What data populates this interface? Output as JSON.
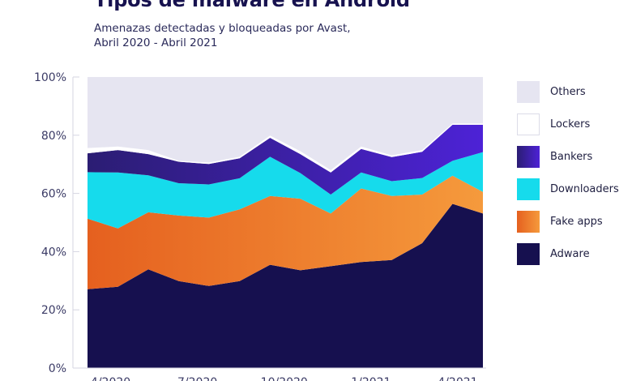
{
  "chart_data": {
    "type": "area",
    "stacked": true,
    "title": "Tipos de malware en Android",
    "subtitle_lines": [
      "Amenazas detectadas y bloqueadas por Avast,",
      "Abril 2020 - Abril 2021"
    ],
    "xlabel": "",
    "ylabel": "",
    "x_unit": "months since 4/2020",
    "x": [
      -0.8,
      0.25,
      1.3,
      2.35,
      3.4,
      4.46,
      5.51,
      6.56,
      7.61,
      8.66,
      9.72,
      10.77,
      11.82,
      12.87
    ],
    "xlim": [
      -0.8,
      12.87
    ],
    "x_ticks": [
      {
        "value": 0,
        "label": "4/2020"
      },
      {
        "value": 3,
        "label": "7/2020"
      },
      {
        "value": 6,
        "label": "10/2020"
      },
      {
        "value": 9,
        "label": "1/2021"
      },
      {
        "value": 12,
        "label": "4/2021"
      }
    ],
    "ylim": [
      0,
      100
    ],
    "y_ticks": [
      {
        "value": 0,
        "label": "0%"
      },
      {
        "value": 20,
        "label": "20%"
      },
      {
        "value": 40,
        "label": "40%"
      },
      {
        "value": 60,
        "label": "60%"
      },
      {
        "value": 80,
        "label": "80%"
      },
      {
        "value": 100,
        "label": "100%"
      }
    ],
    "grid": false,
    "legend_position": "right",
    "series": [
      {
        "name": "Adware",
        "color": "#16104f",
        "color2": "#16104f",
        "values": [
          27.1,
          27.9,
          33.9,
          29.9,
          28.2,
          29.9,
          35.5,
          33.6,
          35.0,
          36.4,
          37.1,
          42.9,
          56.4,
          53.1
        ]
      },
      {
        "name": "Fake apps",
        "color": "#e5601f",
        "color2": "#f59a3c",
        "values": [
          24.2,
          20.1,
          19.6,
          22.5,
          23.5,
          24.6,
          23.6,
          24.6,
          18.1,
          25.3,
          22.0,
          16.7,
          9.7,
          7.4
        ]
      },
      {
        "name": "Downloaders",
        "color": "#16dbec",
        "color2": "#16dbec",
        "values": [
          16.0,
          19.2,
          12.7,
          11.1,
          11.4,
          10.7,
          13.5,
          8.8,
          6.5,
          5.5,
          5.1,
          5.7,
          5.1,
          13.7
        ]
      },
      {
        "name": "Bankers",
        "color": "#2b1d73",
        "color2": "#4d22d6",
        "values": [
          6.5,
          7.7,
          7.3,
          7.4,
          7.0,
          6.9,
          6.5,
          6.5,
          7.6,
          8.1,
          8.3,
          9.0,
          12.4,
          9.4
        ]
      },
      {
        "name": "Lockers",
        "color": "#ffffff",
        "color2": "#ffffff",
        "values": [
          1.8,
          1.2,
          1.4,
          0.3,
          0.5,
          0.5,
          0.8,
          1.0,
          0.8,
          0.8,
          0.6,
          0.6,
          0.4,
          0.4
        ]
      },
      {
        "name": "Others",
        "color": "#e6e5f1",
        "color2": "#e6e5f1",
        "values": [
          24.4,
          23.9,
          25.1,
          28.8,
          29.4,
          27.4,
          20.1,
          25.5,
          32.0,
          23.9,
          26.9,
          25.1,
          16.0,
          16.0
        ]
      }
    ],
    "legend_order": [
      "Others",
      "Lockers",
      "Bankers",
      "Downloaders",
      "Fake apps",
      "Adware"
    ]
  }
}
